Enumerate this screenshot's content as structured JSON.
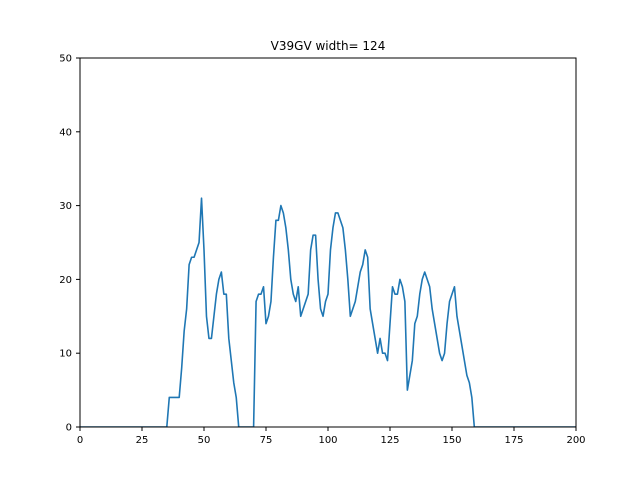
{
  "chart_data": {
    "type": "line",
    "title": "V39GV width= 124",
    "xlabel": "",
    "ylabel": "",
    "xlim": [
      0,
      200
    ],
    "ylim": [
      0,
      50
    ],
    "x_ticks": [
      0,
      25,
      50,
      75,
      100,
      125,
      150,
      175,
      200
    ],
    "y_ticks": [
      0,
      10,
      20,
      30,
      40,
      50
    ],
    "grid": false,
    "series": [
      {
        "color": "#1f77b4",
        "points": [
          [
            0,
            0
          ],
          [
            35,
            0
          ],
          [
            36,
            4
          ],
          [
            40,
            4
          ],
          [
            41,
            8
          ],
          [
            42,
            13
          ],
          [
            43,
            16
          ],
          [
            44,
            22
          ],
          [
            45,
            23
          ],
          [
            46,
            23
          ],
          [
            47,
            24
          ],
          [
            48,
            25
          ],
          [
            49,
            31
          ],
          [
            50,
            24
          ],
          [
            51,
            15
          ],
          [
            52,
            12
          ],
          [
            53,
            12
          ],
          [
            54,
            15
          ],
          [
            55,
            18
          ],
          [
            56,
            20
          ],
          [
            57,
            21
          ],
          [
            58,
            18
          ],
          [
            59,
            18
          ],
          [
            60,
            12
          ],
          [
            61,
            9
          ],
          [
            62,
            6
          ],
          [
            63,
            4
          ],
          [
            64,
            0
          ],
          [
            70,
            0
          ],
          [
            71,
            17
          ],
          [
            72,
            18
          ],
          [
            73,
            18
          ],
          [
            74,
            19
          ],
          [
            75,
            14
          ],
          [
            76,
            15
          ],
          [
            77,
            17
          ],
          [
            78,
            23
          ],
          [
            79,
            28
          ],
          [
            80,
            28
          ],
          [
            81,
            30
          ],
          [
            82,
            29
          ],
          [
            83,
            27
          ],
          [
            84,
            24
          ],
          [
            85,
            20
          ],
          [
            86,
            18
          ],
          [
            87,
            17
          ],
          [
            88,
            19
          ],
          [
            89,
            15
          ],
          [
            90,
            16
          ],
          [
            91,
            17
          ],
          [
            92,
            18
          ],
          [
            93,
            24
          ],
          [
            94,
            26
          ],
          [
            95,
            26
          ],
          [
            96,
            20
          ],
          [
            97,
            16
          ],
          [
            98,
            15
          ],
          [
            99,
            17
          ],
          [
            100,
            18
          ],
          [
            101,
            24
          ],
          [
            102,
            27
          ],
          [
            103,
            29
          ],
          [
            104,
            29
          ],
          [
            105,
            28
          ],
          [
            106,
            27
          ],
          [
            107,
            24
          ],
          [
            108,
            20
          ],
          [
            109,
            15
          ],
          [
            110,
            16
          ],
          [
            111,
            17
          ],
          [
            112,
            19
          ],
          [
            113,
            21
          ],
          [
            114,
            22
          ],
          [
            115,
            24
          ],
          [
            116,
            23
          ],
          [
            117,
            16
          ],
          [
            118,
            14
          ],
          [
            119,
            12
          ],
          [
            120,
            10
          ],
          [
            121,
            12
          ],
          [
            122,
            10
          ],
          [
            123,
            10
          ],
          [
            124,
            9
          ],
          [
            125,
            14
          ],
          [
            126,
            19
          ],
          [
            127,
            18
          ],
          [
            128,
            18
          ],
          [
            129,
            20
          ],
          [
            130,
            19
          ],
          [
            131,
            17
          ],
          [
            132,
            5
          ],
          [
            133,
            7
          ],
          [
            134,
            9
          ],
          [
            135,
            14
          ],
          [
            136,
            15
          ],
          [
            137,
            18
          ],
          [
            138,
            20
          ],
          [
            139,
            21
          ],
          [
            140,
            20
          ],
          [
            141,
            19
          ],
          [
            142,
            16
          ],
          [
            143,
            14
          ],
          [
            144,
            12
          ],
          [
            145,
            10
          ],
          [
            146,
            9
          ],
          [
            147,
            10
          ],
          [
            148,
            14
          ],
          [
            149,
            17
          ],
          [
            150,
            18
          ],
          [
            151,
            19
          ],
          [
            152,
            15
          ],
          [
            153,
            13
          ],
          [
            154,
            11
          ],
          [
            155,
            9
          ],
          [
            156,
            7
          ],
          [
            157,
            6
          ],
          [
            158,
            4
          ],
          [
            159,
            0
          ],
          [
            200,
            0
          ]
        ]
      }
    ]
  }
}
